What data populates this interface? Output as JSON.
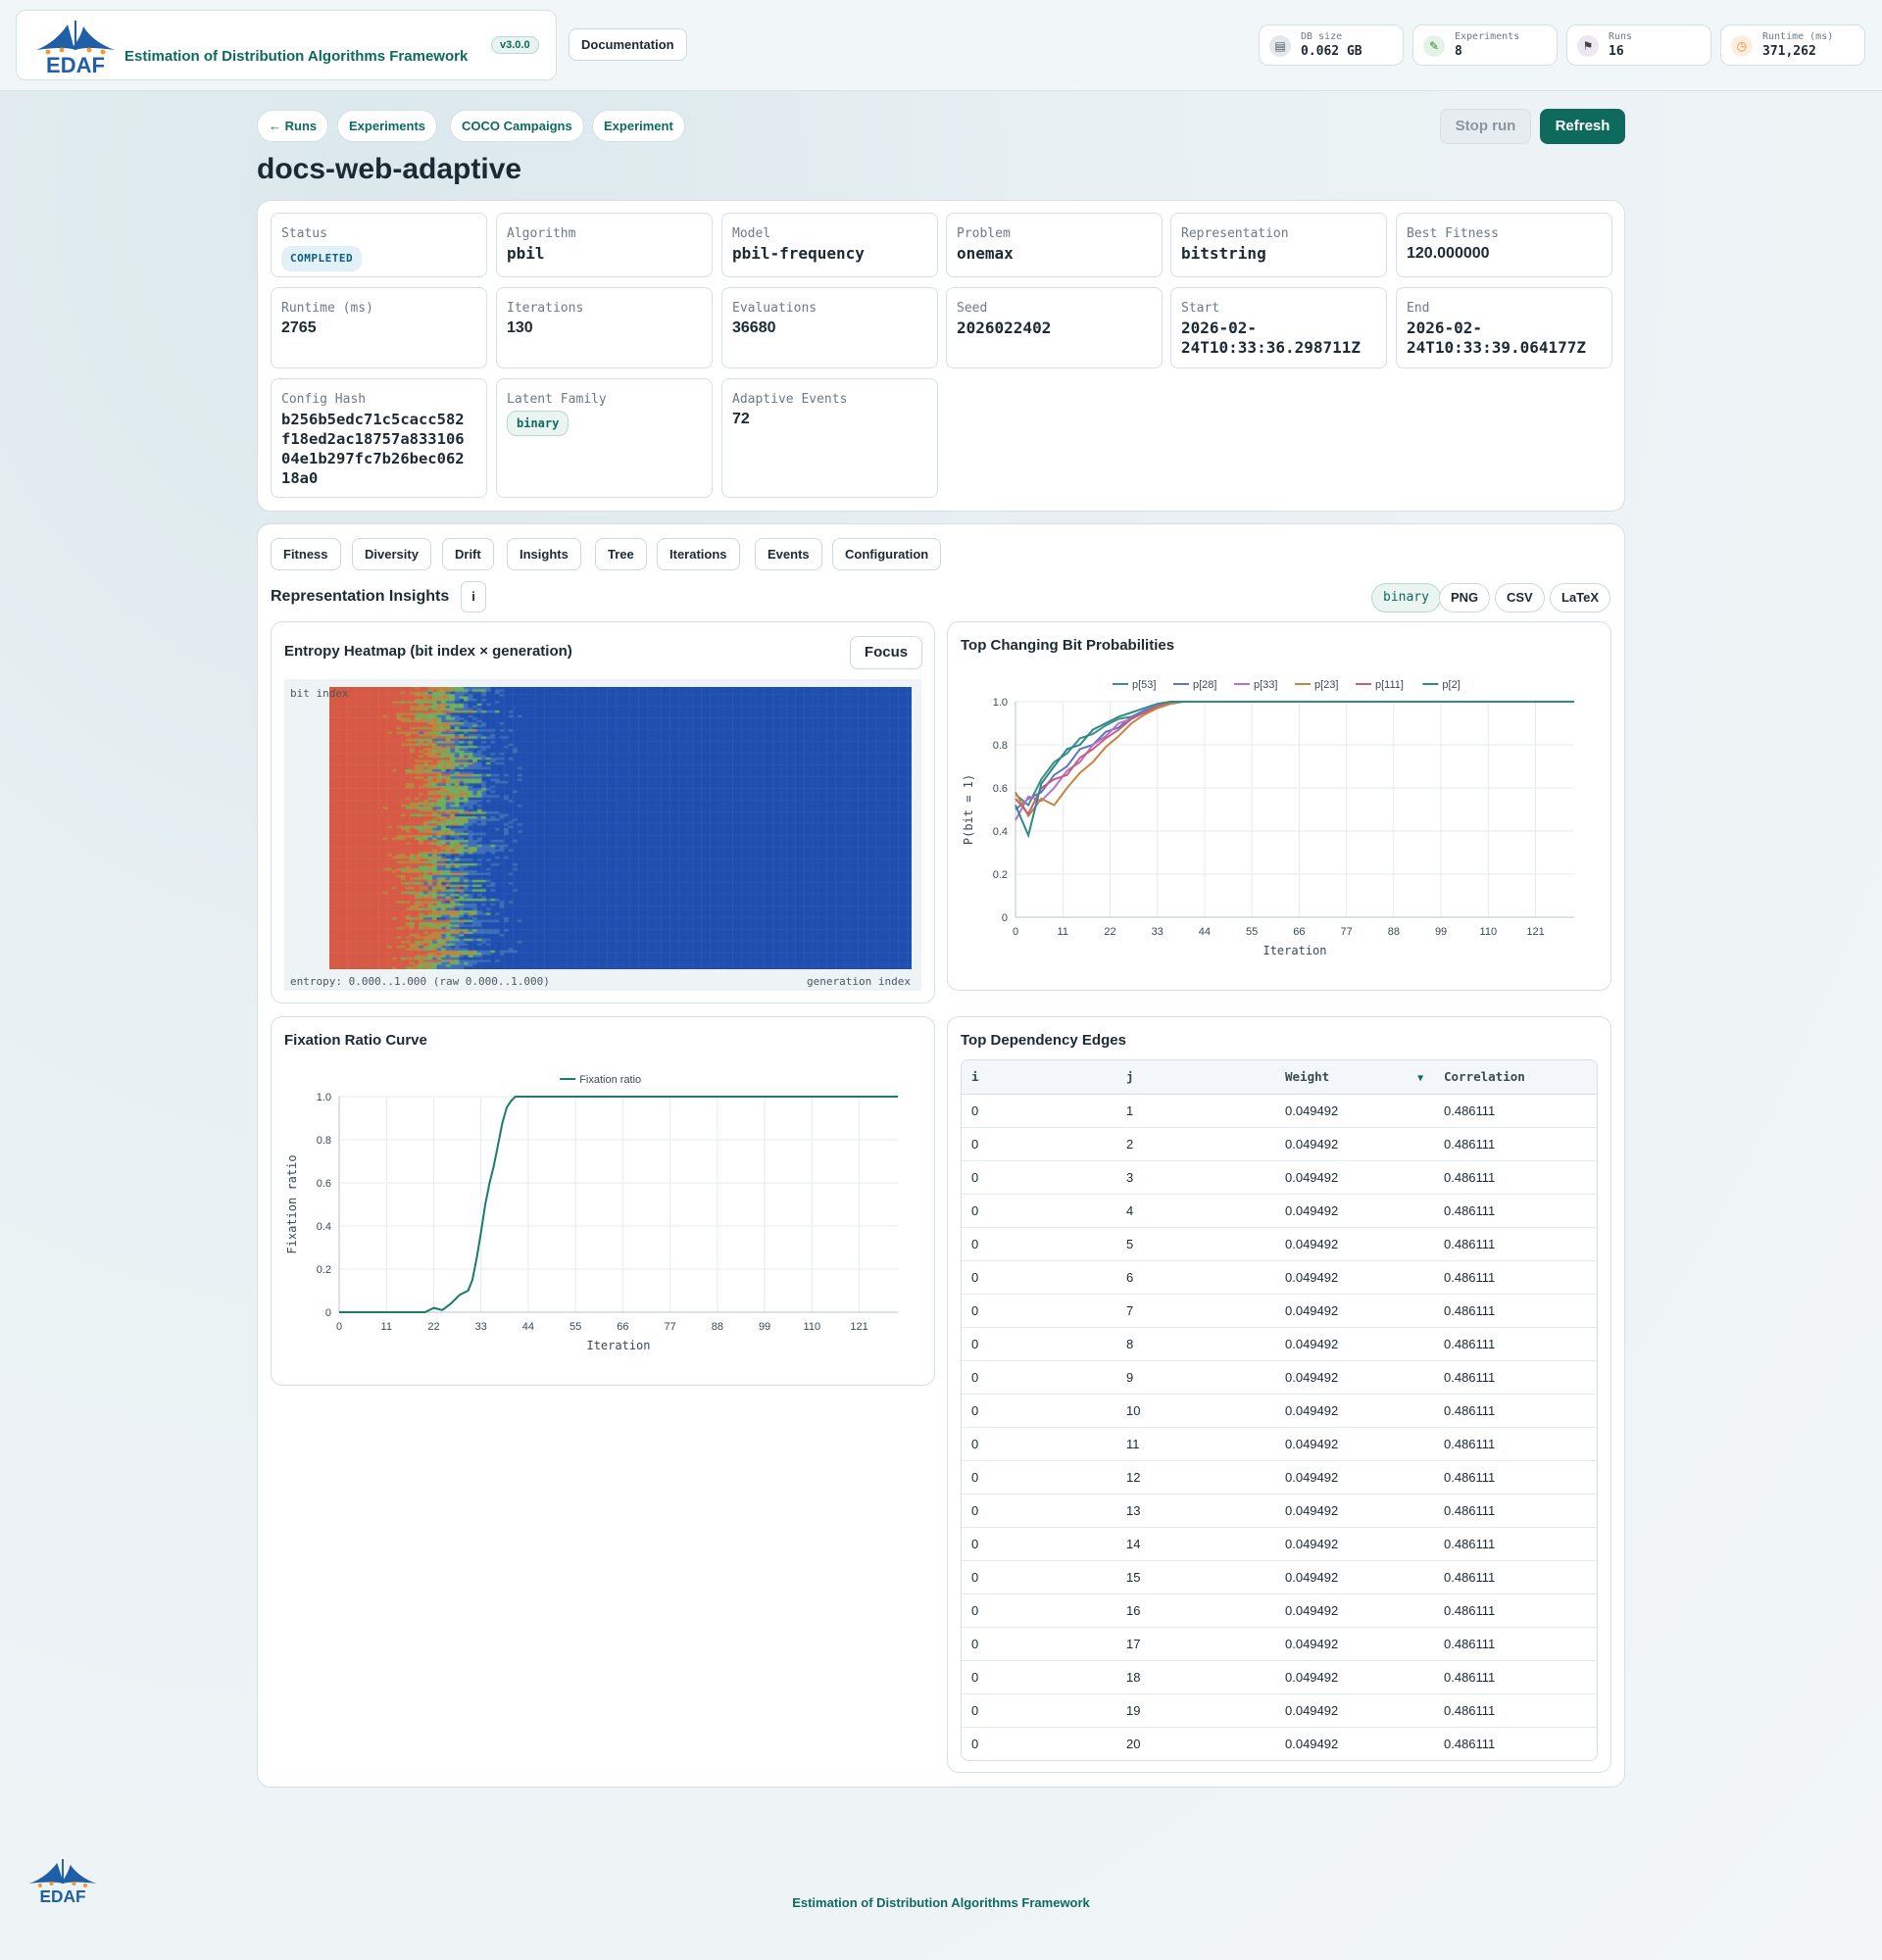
{
  "app": {
    "logo_text": "EDAF",
    "title": "Estimation of Distribution Algorithms Framework",
    "version": "v3.0.0",
    "documentation_label": "Documentation"
  },
  "header_stats": [
    {
      "label": "DB size",
      "value": "0.062 GB",
      "icon": "database-icon"
    },
    {
      "label": "Experiments",
      "value": "8",
      "icon": "pencil-icon"
    },
    {
      "label": "Runs",
      "value": "16",
      "icon": "checkered-flag-icon"
    },
    {
      "label": "Runtime (ms)",
      "value": "371,262",
      "icon": "clock-icon"
    }
  ],
  "nav": {
    "back_label": "← Runs",
    "experiments_label": "Experiments",
    "coco_label": "COCO Campaigns",
    "experiment_label": "Experiment",
    "stop_label": "Stop run",
    "refresh_label": "Refresh"
  },
  "page_title": "docs-web-adaptive",
  "run_info": {
    "status": {
      "label": "Status",
      "value": "COMPLETED"
    },
    "algorithm": {
      "label": "Algorithm",
      "value": "pbil"
    },
    "model": {
      "label": "Model",
      "value": "pbil-frequency"
    },
    "problem": {
      "label": "Problem",
      "value": "onemax"
    },
    "representation": {
      "label": "Representation",
      "value": "bitstring"
    },
    "best_fitness": {
      "label": "Best Fitness",
      "value": "120.000000"
    },
    "runtime": {
      "label": "Runtime (ms)",
      "value": "2765"
    },
    "iterations": {
      "label": "Iterations",
      "value": "130"
    },
    "evaluations": {
      "label": "Evaluations",
      "value": "36680"
    },
    "seed": {
      "label": "Seed",
      "value": "2026022402"
    },
    "start": {
      "label": "Start",
      "line1": "2026-02-",
      "line2": "24T10:33:36.298711Z"
    },
    "end": {
      "label": "End",
      "line1": "2026-02-",
      "line2": "24T10:33:39.064177Z"
    },
    "config_hash": {
      "label": "Config Hash",
      "lines": [
        "b256b5edc71c5cacc582",
        "f18ed2ac18757a833106",
        "04e1b297fc7b26bec062",
        "18a0"
      ]
    },
    "latent_family": {
      "label": "Latent Family",
      "value": "binary"
    },
    "adaptive_events": {
      "label": "Adaptive Events",
      "value": "72"
    }
  },
  "tabs": [
    "Fitness",
    "Diversity",
    "Drift",
    "Insights",
    "Tree",
    "Iterations",
    "Events",
    "Configuration"
  ],
  "insights": {
    "title": "Representation Insights",
    "info_label": "i",
    "family_tag": "binary",
    "export_png": "PNG",
    "export_csv": "CSV",
    "export_latex": "LaTeX"
  },
  "heatmap": {
    "title": "Entropy Heatmap (bit index × generation)",
    "focus_label": "Focus",
    "y_label": "bit index",
    "x_label": "generation index",
    "range_label": "entropy: 0.000..1.000 (raw 0.000..1.000)"
  },
  "chart_data": [
    {
      "type": "line",
      "title": "Top Changing Bit Probabilities",
      "xlabel": "Iteration",
      "ylabel": "P(bit = 1)",
      "xlim": [
        0,
        130
      ],
      "ylim": [
        0,
        1
      ],
      "x_ticks": [
        0,
        11,
        22,
        33,
        44,
        55,
        66,
        77,
        88,
        99,
        110,
        121
      ],
      "y_ticks": [
        "0",
        "0.2",
        "0.4",
        "0.6",
        "0.8",
        "1.0"
      ],
      "legend_position": "top",
      "grid": true,
      "x": [
        0,
        3,
        6,
        9,
        12,
        15,
        18,
        21,
        24,
        27,
        30,
        33,
        36,
        39,
        42,
        130
      ],
      "series": [
        {
          "name": "p[53]",
          "color": "#3f8f86",
          "values": [
            0.57,
            0.52,
            0.64,
            0.72,
            0.76,
            0.83,
            0.85,
            0.89,
            0.92,
            0.93,
            0.95,
            0.97,
            0.99,
            1.0,
            1.0,
            1.0
          ]
        },
        {
          "name": "p[28]",
          "color": "#5b78c9",
          "values": [
            0.5,
            0.55,
            0.58,
            0.66,
            0.7,
            0.78,
            0.8,
            0.86,
            0.88,
            0.93,
            0.96,
            0.98,
            0.99,
            1.0,
            1.0,
            1.0
          ]
        },
        {
          "name": "p[33]",
          "color": "#b86fd0",
          "values": [
            0.45,
            0.56,
            0.54,
            0.6,
            0.68,
            0.72,
            0.8,
            0.84,
            0.9,
            0.92,
            0.95,
            0.97,
            0.99,
            1.0,
            1.0,
            1.0
          ]
        },
        {
          "name": "p[23]",
          "color": "#c6843f",
          "values": [
            0.58,
            0.47,
            0.55,
            0.52,
            0.6,
            0.67,
            0.72,
            0.79,
            0.84,
            0.9,
            0.94,
            0.97,
            0.99,
            1.0,
            1.0,
            1.0
          ]
        },
        {
          "name": "p[111]",
          "color": "#c55f7a",
          "values": [
            0.55,
            0.48,
            0.6,
            0.64,
            0.66,
            0.74,
            0.78,
            0.83,
            0.87,
            0.92,
            0.95,
            0.98,
            1.0,
            1.0,
            1.0,
            1.0
          ]
        },
        {
          "name": "p[2]",
          "color": "#2e8a8a",
          "values": [
            0.52,
            0.38,
            0.62,
            0.7,
            0.78,
            0.8,
            0.87,
            0.9,
            0.93,
            0.95,
            0.97,
            0.99,
            1.0,
            1.0,
            1.0,
            1.0
          ]
        }
      ]
    },
    {
      "type": "line",
      "title": "Fixation Ratio Curve",
      "xlabel": "Iteration",
      "ylabel": "Fixation ratio",
      "xlim": [
        0,
        130
      ],
      "ylim": [
        0,
        1
      ],
      "x_ticks": [
        0,
        11,
        22,
        33,
        44,
        55,
        66,
        77,
        88,
        99,
        110,
        121
      ],
      "y_ticks": [
        "0",
        "0.2",
        "0.4",
        "0.6",
        "0.8",
        "1.0"
      ],
      "legend_position": "top",
      "grid": true,
      "x": [
        0,
        20,
        22,
        24,
        26,
        28,
        30,
        31,
        32,
        33,
        34,
        35,
        36,
        37,
        38,
        39,
        40,
        41,
        42,
        43,
        130
      ],
      "series": [
        {
          "name": "Fixation ratio",
          "color": "#1a7a6b",
          "values": [
            0,
            0,
            0.02,
            0.01,
            0.04,
            0.08,
            0.1,
            0.15,
            0.25,
            0.37,
            0.5,
            0.6,
            0.68,
            0.78,
            0.88,
            0.95,
            0.98,
            1.0,
            1.0,
            1.0,
            1.0
          ]
        }
      ]
    }
  ],
  "dependency_table": {
    "title": "Top Dependency Edges",
    "columns": [
      "i",
      "j",
      "Weight",
      "Correlation"
    ],
    "sort_indicator": "▼",
    "rows": [
      [
        "0",
        "1",
        "0.049492",
        "0.486111"
      ],
      [
        "0",
        "2",
        "0.049492",
        "0.486111"
      ],
      [
        "0",
        "3",
        "0.049492",
        "0.486111"
      ],
      [
        "0",
        "4",
        "0.049492",
        "0.486111"
      ],
      [
        "0",
        "5",
        "0.049492",
        "0.486111"
      ],
      [
        "0",
        "6",
        "0.049492",
        "0.486111"
      ],
      [
        "0",
        "7",
        "0.049492",
        "0.486111"
      ],
      [
        "0",
        "8",
        "0.049492",
        "0.486111"
      ],
      [
        "0",
        "9",
        "0.049492",
        "0.486111"
      ],
      [
        "0",
        "10",
        "0.049492",
        "0.486111"
      ],
      [
        "0",
        "11",
        "0.049492",
        "0.486111"
      ],
      [
        "0",
        "12",
        "0.049492",
        "0.486111"
      ],
      [
        "0",
        "13",
        "0.049492",
        "0.486111"
      ],
      [
        "0",
        "14",
        "0.049492",
        "0.486111"
      ],
      [
        "0",
        "15",
        "0.049492",
        "0.486111"
      ],
      [
        "0",
        "16",
        "0.049492",
        "0.486111"
      ],
      [
        "0",
        "17",
        "0.049492",
        "0.486111"
      ],
      [
        "0",
        "18",
        "0.049492",
        "0.486111"
      ],
      [
        "0",
        "19",
        "0.049492",
        "0.486111"
      ],
      [
        "0",
        "20",
        "0.049492",
        "0.486111"
      ]
    ]
  },
  "footer": {
    "logo_text": "EDAF",
    "text": "Estimation of Distribution Algorithms Framework"
  }
}
